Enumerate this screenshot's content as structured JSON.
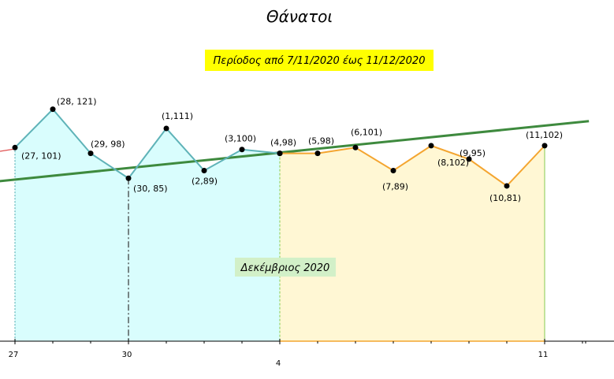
{
  "chart_data": {
    "type": "line",
    "title": "Θάνατοι",
    "subtitle": "Περίοδος από 7/11/2020 έως 11/12/2020",
    "annotation": "Δεκέμβριος 2020",
    "categories": [
      "27",
      null,
      null,
      "30",
      null,
      null,
      null,
      "4",
      null,
      null,
      null,
      null,
      null,
      null,
      "11"
    ],
    "series": [
      {
        "color": "#5fb3b8",
        "fill": "#d9fdfd",
        "values": [
          101,
          121,
          98,
          85,
          111,
          89,
          100,
          98,
          null,
          null,
          null,
          null,
          null,
          null,
          null
        ],
        "value_labels": [
          "(27, 101)",
          "(28, 121)",
          "(29, 98)",
          "(30, 85)",
          "(1,111)",
          "(2,89)",
          "(3,100)",
          "(4,98)",
          null,
          null,
          null,
          null,
          null,
          null,
          null
        ]
      },
      {
        "color": "#f4a530",
        "fill": "#fff7d4",
        "values": [
          null,
          null,
          null,
          null,
          null,
          null,
          null,
          98,
          98,
          101,
          89,
          102,
          95,
          81,
          102
        ],
        "value_labels": [
          null,
          null,
          null,
          null,
          null,
          null,
          null,
          null,
          "(5,98)",
          "(6,101)",
          "(7,89)",
          "(8,102)",
          "(9,95)",
          "(10,81)",
          "(11,102)"
        ]
      }
    ],
    "trendline": {
      "color": "#3e8a3e",
      "x": [
        -0.4,
        15.17
      ],
      "values": [
        83.5,
        114.8
      ]
    },
    "ylim": [
      0,
      178
    ]
  }
}
